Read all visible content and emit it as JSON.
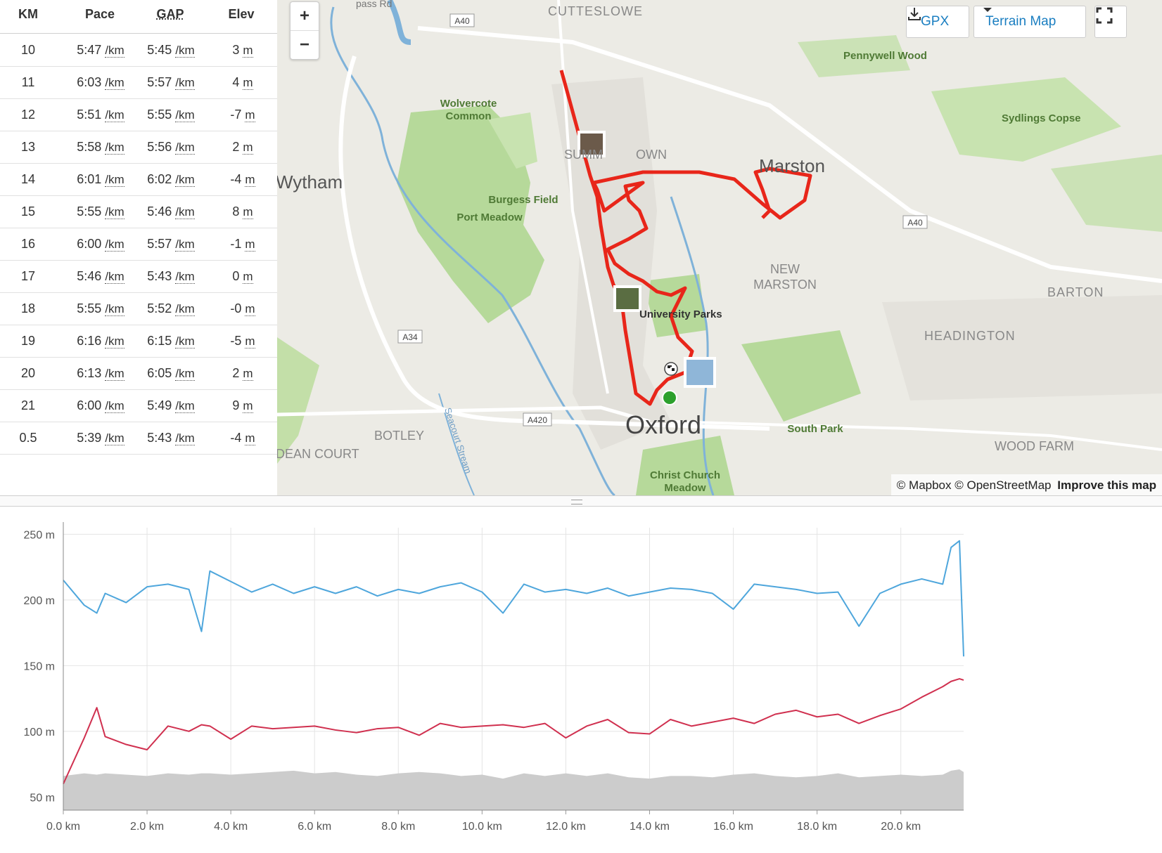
{
  "splits": {
    "headers": {
      "km": "KM",
      "pace": "Pace",
      "gap": "GAP",
      "elev": "Elev"
    },
    "rows": [
      {
        "km": "10",
        "pace": "5:47",
        "gap": "5:45",
        "elev": "3"
      },
      {
        "km": "11",
        "pace": "6:03",
        "gap": "5:57",
        "elev": "4"
      },
      {
        "km": "12",
        "pace": "5:51",
        "gap": "5:55",
        "elev": "-7"
      },
      {
        "km": "13",
        "pace": "5:58",
        "gap": "5:56",
        "elev": "2"
      },
      {
        "km": "14",
        "pace": "6:01",
        "gap": "6:02",
        "elev": "-4"
      },
      {
        "km": "15",
        "pace": "5:55",
        "gap": "5:46",
        "elev": "8"
      },
      {
        "km": "16",
        "pace": "6:00",
        "gap": "5:57",
        "elev": "-1"
      },
      {
        "km": "17",
        "pace": "5:46",
        "gap": "5:43",
        "elev": "0"
      },
      {
        "km": "18",
        "pace": "5:55",
        "gap": "5:52",
        "elev": "-0"
      },
      {
        "km": "19",
        "pace": "6:16",
        "gap": "6:15",
        "elev": "-5"
      },
      {
        "km": "20",
        "pace": "6:13",
        "gap": "6:05",
        "elev": "2"
      },
      {
        "km": "21",
        "pace": "6:00",
        "gap": "5:49",
        "elev": "9"
      },
      {
        "km": "0.5",
        "pace": "5:39",
        "gap": "5:43",
        "elev": "-4"
      }
    ],
    "pace_unit": "/km",
    "elev_unit": "m"
  },
  "map": {
    "zoom_in": "+",
    "zoom_out": "−",
    "gpx_label": "GPX",
    "map_type_label": "Terrain Map",
    "attribution_1": "© Mapbox © OpenStreetMap",
    "attribution_2": "Improve this map",
    "labels": {
      "cutteslowe": "CUTTESLOWE",
      "pennywell": "Pennywell Wood",
      "wolvercote1": "Wolvercote",
      "wolvercote2": "Common",
      "sydlings": "Sydlings Copse",
      "summertown_a": "SUMM",
      "summertown_b": "OWN",
      "marston": "Marston",
      "wytham": "Wytham",
      "burgess": "Burgess Field",
      "portmeadow": "Port Meadow",
      "newmarston1": "NEW",
      "newmarston2": "MARSTON",
      "barton": "BARTON",
      "uniparks": "University Parks",
      "headington": "HEADINGTON",
      "botley": "BOTLEY",
      "oxford": "Oxford",
      "southpark": "South Park",
      "deancourt": "DEAN COURT",
      "woodfarm": "WOOD FARM",
      "christchurch1": "Christ Church",
      "christchurch2": "Meadow",
      "seacourt": "Seacourt Stream",
      "a40": "A40",
      "a34": "A34",
      "a420": "A420",
      "passrd": "pass Rd"
    },
    "colors": {
      "route": "#e8261a",
      "park": "#b6d99a",
      "water": "#7fb2d9",
      "start": "#2ca02c"
    }
  },
  "chart_data": {
    "type": "line",
    "xlabel": "",
    "ylabel": "",
    "xlim": [
      0,
      21.5
    ],
    "ylim": [
      40,
      255
    ],
    "yticks": [
      "250 m",
      "200 m",
      "150 m",
      "100 m",
      "50 m"
    ],
    "ytick_values": [
      250,
      200,
      150,
      100,
      50
    ],
    "xticks": [
      "0.0 km",
      "2.0 km",
      "4.0 km",
      "6.0 km",
      "8.0 km",
      "10.0 km",
      "12.0 km",
      "14.0 km",
      "16.0 km",
      "18.0 km",
      "20.0 km"
    ],
    "xtick_values": [
      0,
      2,
      4,
      6,
      8,
      10,
      12,
      14,
      16,
      18,
      20
    ],
    "x": [
      0,
      0.5,
      0.8,
      1,
      1.5,
      2,
      2.5,
      3,
      3.3,
      3.5,
      4,
      4.5,
      5,
      5.5,
      6,
      6.5,
      7,
      7.5,
      8,
      8.5,
      9,
      9.5,
      10,
      10.5,
      11,
      11.5,
      12,
      12.5,
      13,
      13.5,
      14,
      14.5,
      15,
      15.5,
      16,
      16.5,
      17,
      17.5,
      18,
      18.5,
      19,
      19.5,
      20,
      20.5,
      21,
      21.2,
      21.4,
      21.5
    ],
    "series": [
      {
        "color": "#4ea6dc",
        "values": [
          215,
          196,
          190,
          205,
          198,
          210,
          212,
          208,
          176,
          222,
          214,
          206,
          212,
          205,
          210,
          205,
          210,
          203,
          208,
          205,
          210,
          213,
          206,
          190,
          212,
          206,
          208,
          205,
          209,
          203,
          206,
          209,
          208,
          205,
          193,
          212,
          210,
          208,
          205,
          206,
          180,
          205,
          212,
          216,
          212,
          240,
          245,
          157
        ]
      },
      {
        "color": "#d0304f",
        "values": [
          60,
          95,
          118,
          96,
          90,
          86,
          104,
          100,
          105,
          104,
          94,
          104,
          102,
          103,
          104,
          101,
          99,
          102,
          103,
          97,
          106,
          103,
          104,
          105,
          103,
          106,
          95,
          104,
          109,
          99,
          98,
          109,
          104,
          107,
          110,
          106,
          113,
          116,
          111,
          113,
          106,
          112,
          117,
          126,
          134,
          138,
          140,
          139
        ]
      },
      {
        "color": "#cccccc",
        "values": [
          66,
          68,
          67,
          68,
          67,
          66,
          68,
          67,
          68,
          68,
          67,
          68,
          69,
          70,
          68,
          69,
          67,
          66,
          68,
          69,
          68,
          66,
          67,
          64,
          68,
          66,
          68,
          66,
          68,
          65,
          64,
          66,
          66,
          65,
          67,
          68,
          66,
          65,
          66,
          68,
          65,
          66,
          67,
          66,
          67,
          70,
          71,
          69
        ]
      }
    ]
  }
}
